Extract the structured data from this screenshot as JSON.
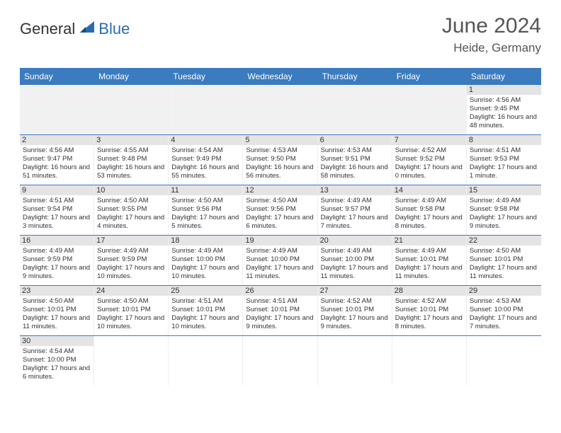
{
  "brand": {
    "part1": "General",
    "part2": "Blue"
  },
  "title": "June 2024",
  "location": "Heide, Germany",
  "colors": {
    "header_bar": "#3b7bbf",
    "header_text": "#ffffff",
    "daynum_bg": "#e4e4e4",
    "empty_bg": "#f1f1f1",
    "row_border": "#3b7bbf",
    "text": "#333333",
    "title": "#555555",
    "logo_blue": "#2a6bb3"
  },
  "dow": [
    "Sunday",
    "Monday",
    "Tuesday",
    "Wednesday",
    "Thursday",
    "Friday",
    "Saturday"
  ],
  "weeks": [
    [
      null,
      null,
      null,
      null,
      null,
      null,
      {
        "n": "1",
        "sunrise": "Sunrise: 4:56 AM",
        "sunset": "Sunset: 9:45 PM",
        "daylight": "Daylight: 16 hours and 48 minutes."
      }
    ],
    [
      {
        "n": "2",
        "sunrise": "Sunrise: 4:56 AM",
        "sunset": "Sunset: 9:47 PM",
        "daylight": "Daylight: 16 hours and 51 minutes."
      },
      {
        "n": "3",
        "sunrise": "Sunrise: 4:55 AM",
        "sunset": "Sunset: 9:48 PM",
        "daylight": "Daylight: 16 hours and 53 minutes."
      },
      {
        "n": "4",
        "sunrise": "Sunrise: 4:54 AM",
        "sunset": "Sunset: 9:49 PM",
        "daylight": "Daylight: 16 hours and 55 minutes."
      },
      {
        "n": "5",
        "sunrise": "Sunrise: 4:53 AM",
        "sunset": "Sunset: 9:50 PM",
        "daylight": "Daylight: 16 hours and 56 minutes."
      },
      {
        "n": "6",
        "sunrise": "Sunrise: 4:53 AM",
        "sunset": "Sunset: 9:51 PM",
        "daylight": "Daylight: 16 hours and 58 minutes."
      },
      {
        "n": "7",
        "sunrise": "Sunrise: 4:52 AM",
        "sunset": "Sunset: 9:52 PM",
        "daylight": "Daylight: 17 hours and 0 minutes."
      },
      {
        "n": "8",
        "sunrise": "Sunrise: 4:51 AM",
        "sunset": "Sunset: 9:53 PM",
        "daylight": "Daylight: 17 hours and 1 minute."
      }
    ],
    [
      {
        "n": "9",
        "sunrise": "Sunrise: 4:51 AM",
        "sunset": "Sunset: 9:54 PM",
        "daylight": "Daylight: 17 hours and 3 minutes."
      },
      {
        "n": "10",
        "sunrise": "Sunrise: 4:50 AM",
        "sunset": "Sunset: 9:55 PM",
        "daylight": "Daylight: 17 hours and 4 minutes."
      },
      {
        "n": "11",
        "sunrise": "Sunrise: 4:50 AM",
        "sunset": "Sunset: 9:56 PM",
        "daylight": "Daylight: 17 hours and 5 minutes."
      },
      {
        "n": "12",
        "sunrise": "Sunrise: 4:50 AM",
        "sunset": "Sunset: 9:56 PM",
        "daylight": "Daylight: 17 hours and 6 minutes."
      },
      {
        "n": "13",
        "sunrise": "Sunrise: 4:49 AM",
        "sunset": "Sunset: 9:57 PM",
        "daylight": "Daylight: 17 hours and 7 minutes."
      },
      {
        "n": "14",
        "sunrise": "Sunrise: 4:49 AM",
        "sunset": "Sunset: 9:58 PM",
        "daylight": "Daylight: 17 hours and 8 minutes."
      },
      {
        "n": "15",
        "sunrise": "Sunrise: 4:49 AM",
        "sunset": "Sunset: 9:58 PM",
        "daylight": "Daylight: 17 hours and 9 minutes."
      }
    ],
    [
      {
        "n": "16",
        "sunrise": "Sunrise: 4:49 AM",
        "sunset": "Sunset: 9:59 PM",
        "daylight": "Daylight: 17 hours and 9 minutes."
      },
      {
        "n": "17",
        "sunrise": "Sunrise: 4:49 AM",
        "sunset": "Sunset: 9:59 PM",
        "daylight": "Daylight: 17 hours and 10 minutes."
      },
      {
        "n": "18",
        "sunrise": "Sunrise: 4:49 AM",
        "sunset": "Sunset: 10:00 PM",
        "daylight": "Daylight: 17 hours and 10 minutes."
      },
      {
        "n": "19",
        "sunrise": "Sunrise: 4:49 AM",
        "sunset": "Sunset: 10:00 PM",
        "daylight": "Daylight: 17 hours and 11 minutes."
      },
      {
        "n": "20",
        "sunrise": "Sunrise: 4:49 AM",
        "sunset": "Sunset: 10:00 PM",
        "daylight": "Daylight: 17 hours and 11 minutes."
      },
      {
        "n": "21",
        "sunrise": "Sunrise: 4:49 AM",
        "sunset": "Sunset: 10:01 PM",
        "daylight": "Daylight: 17 hours and 11 minutes."
      },
      {
        "n": "22",
        "sunrise": "Sunrise: 4:50 AM",
        "sunset": "Sunset: 10:01 PM",
        "daylight": "Daylight: 17 hours and 11 minutes."
      }
    ],
    [
      {
        "n": "23",
        "sunrise": "Sunrise: 4:50 AM",
        "sunset": "Sunset: 10:01 PM",
        "daylight": "Daylight: 17 hours and 11 minutes."
      },
      {
        "n": "24",
        "sunrise": "Sunrise: 4:50 AM",
        "sunset": "Sunset: 10:01 PM",
        "daylight": "Daylight: 17 hours and 10 minutes."
      },
      {
        "n": "25",
        "sunrise": "Sunrise: 4:51 AM",
        "sunset": "Sunset: 10:01 PM",
        "daylight": "Daylight: 17 hours and 10 minutes."
      },
      {
        "n": "26",
        "sunrise": "Sunrise: 4:51 AM",
        "sunset": "Sunset: 10:01 PM",
        "daylight": "Daylight: 17 hours and 9 minutes."
      },
      {
        "n": "27",
        "sunrise": "Sunrise: 4:52 AM",
        "sunset": "Sunset: 10:01 PM",
        "daylight": "Daylight: 17 hours and 9 minutes."
      },
      {
        "n": "28",
        "sunrise": "Sunrise: 4:52 AM",
        "sunset": "Sunset: 10:01 PM",
        "daylight": "Daylight: 17 hours and 8 minutes."
      },
      {
        "n": "29",
        "sunrise": "Sunrise: 4:53 AM",
        "sunset": "Sunset: 10:00 PM",
        "daylight": "Daylight: 17 hours and 7 minutes."
      }
    ],
    [
      {
        "n": "30",
        "sunrise": "Sunrise: 4:54 AM",
        "sunset": "Sunset: 10:00 PM",
        "daylight": "Daylight: 17 hours and 6 minutes."
      },
      null,
      null,
      null,
      null,
      null,
      null
    ]
  ]
}
